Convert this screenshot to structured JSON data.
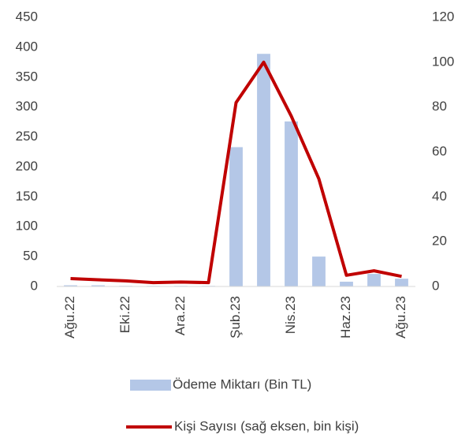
{
  "chart_data": {
    "type": "bar_line",
    "categories": [
      "Ağu.22",
      null,
      "Eki.22",
      null,
      "Ara.22",
      null,
      "Şub.23",
      null,
      "Nis.23",
      null,
      "Haz.23",
      null,
      "Ağu.23"
    ],
    "series": [
      {
        "name": "Ödeme Miktarı (Bin TL)",
        "color": "#b4c7e7",
        "type": "bar",
        "axis": "y",
        "values": [
          2,
          2,
          1,
          1,
          1,
          1,
          233,
          389,
          276,
          50,
          8,
          21,
          13
        ]
      },
      {
        "name": "Kişi Sayısı (sağ eksen, bin kişi)",
        "color": "#c00000",
        "type": "line",
        "axis": "y2",
        "values": [
          3.5,
          3,
          2.5,
          1.7,
          2,
          1.7,
          82,
          100,
          76,
          48,
          5,
          7,
          4.5
        ]
      }
    ],
    "ylim": [
      0,
      450
    ],
    "yticks": [
      0,
      50,
      100,
      150,
      200,
      250,
      300,
      350,
      400,
      450
    ],
    "y2lim": [
      0,
      120
    ],
    "y2ticks": [
      0,
      20,
      40,
      60,
      80,
      100,
      120
    ],
    "grid": false,
    "legend": "bottom"
  }
}
